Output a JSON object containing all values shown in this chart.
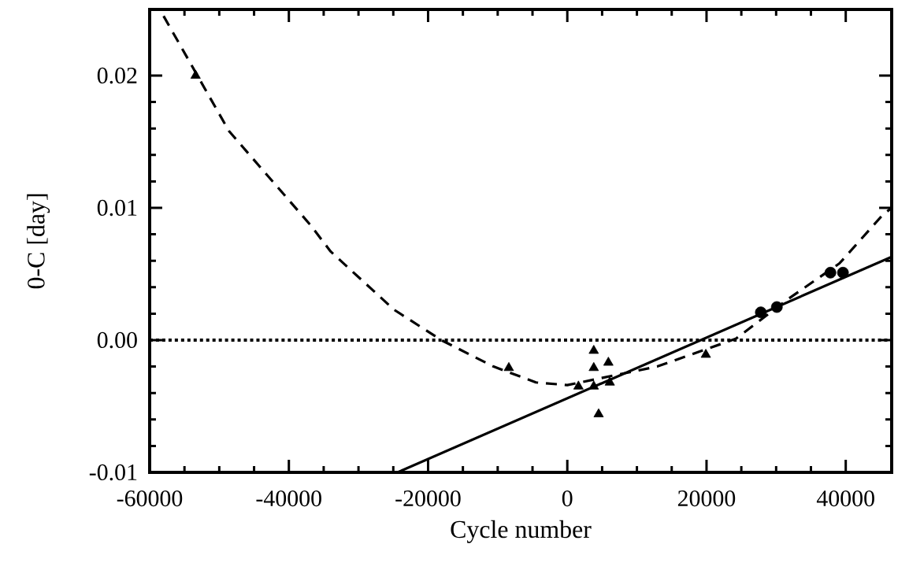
{
  "chart_data": {
    "type": "scatter",
    "xlabel": "Cycle number",
    "ylabel": "0-C [day]",
    "xlim": [
      -60000,
      46600
    ],
    "ylim": [
      -0.01,
      0.025
    ],
    "xticks": [
      -60000,
      -40000,
      -20000,
      0,
      20000,
      40000
    ],
    "yticks": [
      {
        "value": -0.01,
        "label": "-0.01"
      },
      {
        "value": 0,
        "label": "0.00"
      },
      {
        "value": 0.01,
        "label": "0.01"
      },
      {
        "value": 0.02,
        "label": "0.02"
      }
    ],
    "grid": false,
    "ref_lines": [
      {
        "axis": "y",
        "value": 0,
        "line_style": "dotted",
        "color": "#000000"
      }
    ],
    "series": [
      {
        "marker": "triangle",
        "color": "#000000",
        "x": [
          -53400,
          -8400,
          1600,
          3800,
          5900,
          3800,
          3800,
          6100,
          4500,
          19900
        ],
        "values": [
          0.02,
          -0.0021,
          -0.0035,
          -0.0008,
          -0.0017,
          -0.0021,
          -0.0035,
          -0.0032,
          -0.0056,
          -0.0011
        ]
      },
      {
        "marker": "circle",
        "color": "#000000",
        "x": [
          27800,
          30100,
          37800,
          39600
        ],
        "values": [
          0.0021,
          0.0025,
          0.0051,
          0.0051
        ]
      },
      {
        "type": "line",
        "line_style": "solid",
        "marker": "none",
        "color": "#000000",
        "x": [
          -24400,
          46600
        ],
        "values": [
          -0.01,
          0.0063
        ]
      },
      {
        "type": "line",
        "line_style": "dashed",
        "marker": "none",
        "color": "#000000",
        "x": [
          -58000,
          -48600,
          -36900,
          -34000,
          -24900,
          -18100,
          -10600,
          -4500,
          0,
          12900,
          24200,
          31700,
          39100,
          45200,
          46600
        ],
        "values": [
          0.0245,
          0.0158,
          0.0087,
          0.0067,
          0.0023,
          0.0,
          -0.002,
          -0.0032,
          -0.0034,
          -0.002,
          0.0001,
          0.0031,
          0.0058,
          0.0094,
          0.01
        ]
      }
    ]
  }
}
